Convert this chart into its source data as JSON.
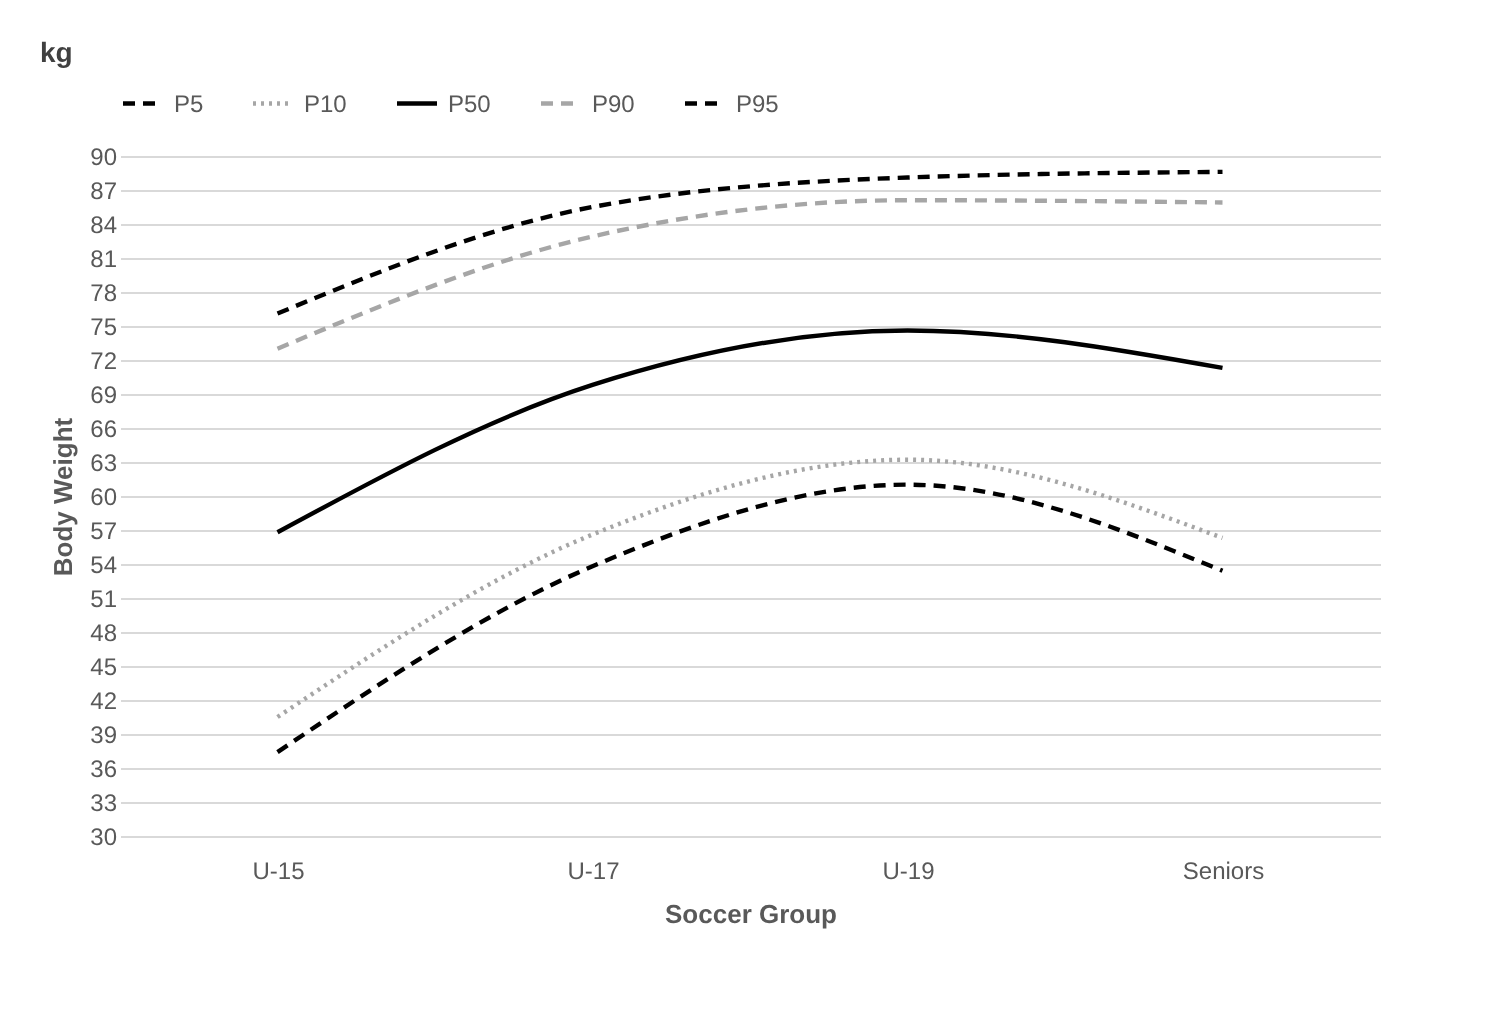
{
  "chart_data": {
    "type": "line",
    "xlabel": "Soccer Group",
    "ylabel": "Body Weight",
    "annotations": [
      "kg"
    ],
    "categories": [
      "U-15",
      "U-17",
      "U-19",
      "Seniors"
    ],
    "series": [
      {
        "name": "P5",
        "color": "#000000",
        "line_style": "dashed",
        "values": [
          37.4,
          53.8,
          61,
          53.4
        ]
      },
      {
        "name": "P10",
        "color": "#a6a6a6",
        "line_style": "dotted",
        "values": [
          40.5,
          56.6,
          63.2,
          56.3
        ]
      },
      {
        "name": "P50",
        "color": "#000000",
        "line_style": "solid",
        "values": [
          56.8,
          69.8,
          74.6,
          71.3
        ]
      },
      {
        "name": "P90",
        "color": "#a6a6a6",
        "line_style": "dashed",
        "values": [
          73,
          82.9,
          86.1,
          85.9
        ]
      },
      {
        "name": "P95",
        "color": "#000000",
        "line_style": "dashed",
        "values": [
          76.1,
          85.5,
          88.1,
          88.6
        ]
      }
    ],
    "ylim": [
      30,
      90
    ],
    "yticks": [
      30,
      33,
      36,
      39,
      42,
      45,
      48,
      51,
      54,
      57,
      60,
      63,
      66,
      69,
      72,
      75,
      78,
      81,
      84,
      87,
      90
    ],
    "grid": "y",
    "legend": "top",
    "marker": "none"
  }
}
